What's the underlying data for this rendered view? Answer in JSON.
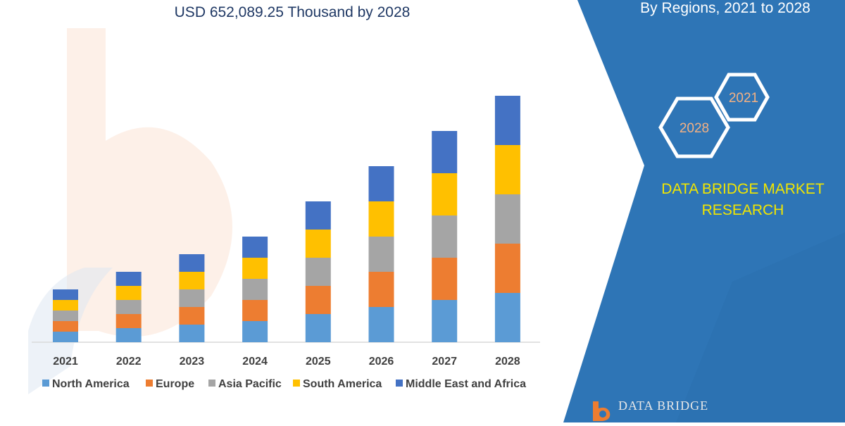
{
  "header": {
    "subtitle": "USD 652,089.25 Thousand by 2028",
    "panel_title": "By Regions, 2021 to 2028"
  },
  "badges": {
    "year_start": "2021",
    "year_end": "2028"
  },
  "brand": {
    "line1": "DATA BRIDGE MARKET",
    "line2": "RESEARCH",
    "logo_text": "DATA BRIDGE"
  },
  "colors": {
    "panel_blue": "#2e75b6",
    "north_america": "#5b9bd5",
    "europe": "#ed7d31",
    "asia_pacific": "#a5a5a5",
    "south_america": "#ffc000",
    "middle_east_africa": "#4472c4",
    "brand_yellow": "#f2e600"
  },
  "chart_data": {
    "type": "bar",
    "stacked": true,
    "categories": [
      "2021",
      "2022",
      "2023",
      "2024",
      "2025",
      "2026",
      "2027",
      "2028"
    ],
    "series": [
      {
        "name": "North America",
        "values": [
          15,
          20,
          25,
          30,
          40,
          50,
          60,
          70
        ]
      },
      {
        "name": "Europe",
        "values": [
          15,
          20,
          25,
          30,
          40,
          50,
          60,
          70
        ]
      },
      {
        "name": "Asia Pacific",
        "values": [
          15,
          20,
          25,
          30,
          40,
          50,
          60,
          70
        ]
      },
      {
        "name": "South America",
        "values": [
          15,
          20,
          25,
          30,
          40,
          50,
          60,
          70
        ]
      },
      {
        "name": "Middle East and Africa",
        "values": [
          15,
          20,
          25,
          30,
          40,
          50,
          60,
          70
        ]
      }
    ],
    "ylim": [
      0,
      350
    ],
    "legend_position": "bottom",
    "grid": false
  }
}
